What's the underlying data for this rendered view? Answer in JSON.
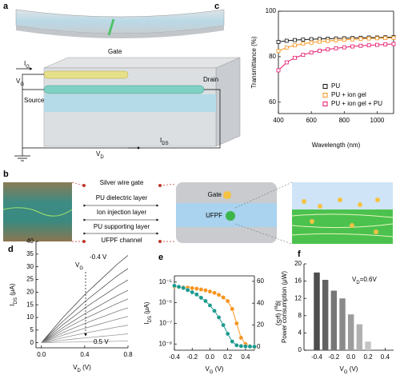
{
  "figure": {
    "panel_labels": [
      "a",
      "b",
      "c",
      "d",
      "e",
      "f"
    ],
    "a": {
      "gate": "Gate",
      "ig": {
        "main": "I",
        "sub": "G"
      },
      "vg": {
        "main": "V",
        "sub": "G"
      },
      "source": "Source",
      "drain": "Drain",
      "ids": {
        "main": "I",
        "sub": "DS"
      },
      "vd": {
        "main": "V",
        "sub": "D"
      }
    },
    "b": {
      "layers": [
        "Silver wire gate",
        "PU dielectric layer",
        "Ion injection layer",
        "PU supporting layer",
        "UFPF channel"
      ],
      "gate": "Gate",
      "ufpf": "UFPF"
    }
  },
  "chart_data": [
    {
      "type": "scatter",
      "xlabel": "Wavelength (nm)",
      "ylabel": "Transmittance (%)",
      "x": [
        400,
        450,
        500,
        550,
        600,
        650,
        700,
        750,
        800,
        850,
        900,
        950,
        1000,
        1050,
        1100
      ],
      "series": [
        {
          "name": "PU",
          "color": "#111111",
          "values": [
            86.5,
            87,
            87.3,
            87.5,
            87.7,
            87.8,
            87.9,
            88,
            88.1,
            88.2,
            88.3,
            88.4,
            88.4,
            88.5,
            88.6
          ]
        },
        {
          "name": "PU + ion gel",
          "color": "#f7941d",
          "values": [
            82.5,
            84,
            85,
            85.7,
            86.2,
            86.6,
            86.9,
            87.2,
            87.4,
            87.6,
            87.8,
            88,
            88.1,
            88.2,
            88.3
          ]
        },
        {
          "name": "PU + ion gel + PU",
          "color": "#e6156b",
          "values": [
            74,
            77.5,
            79.5,
            80.8,
            81.8,
            82.6,
            83.2,
            83.7,
            84.1,
            84.5,
            84.8,
            85,
            85.2,
            85.4,
            85.6
          ]
        }
      ],
      "xlim": [
        400,
        1100
      ],
      "xticks": [
        400,
        600,
        800,
        1000
      ],
      "ylim": [
        55,
        100
      ],
      "yticks": [
        60,
        80,
        100
      ],
      "legend": "lower right"
    },
    {
      "type": "line",
      "xlabel": {
        "main": "V",
        "sub": "D",
        "unit": " (V)"
      },
      "ylabel": {
        "main": "I",
        "sub": "DS",
        "unit": " (μA)"
      },
      "x": [
        0,
        0.1,
        0.2,
        0.3,
        0.4,
        0.5,
        0.6,
        0.7,
        0.8
      ],
      "series": [
        {
          "color": "#444444",
          "values": [
            0,
            5,
            10,
            14.5,
            19,
            23,
            27,
            31,
            34.5
          ]
        },
        {
          "color": "#555555",
          "values": [
            0,
            4.3,
            8.5,
            12.3,
            16.2,
            19.6,
            23,
            26.4,
            29.3
          ]
        },
        {
          "color": "#606060",
          "values": [
            0,
            3.6,
            7.2,
            10.4,
            13.7,
            16.6,
            19.4,
            22.3,
            24.8
          ]
        },
        {
          "color": "#6a6a6a",
          "values": [
            0,
            3,
            6,
            8.7,
            11.4,
            13.8,
            16.2,
            18.6,
            20.7
          ]
        },
        {
          "color": "#747474",
          "values": [
            0,
            2.5,
            5,
            7.3,
            9.5,
            11.5,
            13.5,
            15.5,
            17.3
          ]
        },
        {
          "color": "#7e7e7e",
          "values": [
            0,
            2,
            4,
            5.8,
            7.6,
            9.2,
            10.8,
            12.4,
            13.8
          ]
        },
        {
          "color": "#888888",
          "values": [
            0,
            1.5,
            3,
            4.4,
            5.7,
            6.9,
            8.1,
            9.3,
            10.4
          ]
        },
        {
          "color": "#929292",
          "values": [
            0,
            1,
            2,
            2.9,
            3.8,
            4.6,
            5.4,
            6.2,
            6.9
          ]
        },
        {
          "color": "#9c9c9c",
          "values": [
            0,
            0.5,
            1,
            1.5,
            1.9,
            2.3,
            2.7,
            3.1,
            3.5
          ]
        },
        {
          "color": "#a6a6a6",
          "values": [
            0,
            0.1,
            0.2,
            0.3,
            0.4,
            0.5,
            0.5,
            0.6,
            0.7
          ]
        }
      ],
      "annotations": {
        "top": "-0.4 V",
        "bottom": "0.5 V",
        "arrow": {
          "main": "V",
          "sub": "G"
        }
      },
      "xlim": [
        -0.05,
        0.8
      ],
      "xticks": [
        {
          "value": 0,
          "label": "0.0"
        },
        0.4,
        0.8
      ],
      "ylim": [
        -2,
        40
      ],
      "yticks": [
        0,
        5,
        10,
        15,
        20,
        25,
        30,
        35,
        40
      ]
    },
    {
      "type": "line",
      "xlabel": {
        "main": "V",
        "sub": "G",
        "unit": " (V)"
      },
      "ylabel": {
        "main": "I",
        "sub": "DS",
        "unit": " (μA)"
      },
      "y2label": {
        "main": "|g",
        "sub": "m",
        "unit": "| (μS)"
      },
      "x": [
        -0.4,
        -0.35,
        -0.3,
        -0.25,
        -0.2,
        -0.15,
        -0.1,
        -0.05,
        0,
        0.05,
        0.1,
        0.15,
        0.2,
        0.25,
        0.3,
        0.35,
        0.4,
        0.45,
        0.5
      ],
      "series": [
        {
          "color": "#f7941d",
          "values": [
            6e-06,
            5.8e-06,
            5.6e-06,
            5.4e-06,
            5.1e-06,
            4.8e-06,
            4.4e-06,
            4e-06,
            3.5e-06,
            3e-06,
            2.4e-06,
            1.8e-06,
            1.2e-06,
            5e-07,
            1e-07,
            2e-08,
            1e-08,
            8e-09,
            7e-09
          ]
        },
        {
          "color": "#1a9a8f",
          "axis": "y2",
          "values": [
            56,
            55,
            54,
            52,
            50,
            48,
            45,
            42,
            38,
            33,
            27,
            20,
            12,
            5,
            1.5,
            0.8,
            0.5,
            0.4,
            0.3
          ]
        }
      ],
      "xlim": [
        -0.4,
        0.5
      ],
      "xticks": [
        -0.4,
        -0.2,
        {
          "value": 0,
          "label": "0.0"
        },
        0.2,
        0.4
      ],
      "ylog": true,
      "ylim": [
        5e-09,
        2e-05
      ],
      "yticks": [
        {
          "value": 1e-08,
          "label": "10⁻⁸"
        },
        {
          "value": 1e-07,
          "label": "10⁻⁷"
        },
        {
          "value": 1e-06,
          "label": "10⁻⁶"
        },
        {
          "value": 1e-05,
          "label": "10⁻⁵"
        }
      ],
      "y2lim": [
        -3,
        65
      ],
      "y2ticks": [
        0,
        20,
        40,
        60
      ]
    },
    {
      "type": "bar",
      "xlabel": {
        "main": "V",
        "sub": "G",
        "unit": " (V)"
      },
      "ylabel": "Power consumption (μW)",
      "x": [
        -0.4,
        -0.3,
        -0.2,
        -0.1,
        0,
        0.1,
        0.2
      ],
      "values": [
        18,
        16.3,
        13.8,
        12,
        8.3,
        6,
        2
      ],
      "colors": [
        "#4d4d4d",
        "#626262",
        "#777777",
        "#8a8a8a",
        "#9c9c9c",
        "#b0b0b0",
        "#c4c4c4"
      ],
      "annotation": {
        "main": "V",
        "sub": "D",
        "unit": "=0.6V"
      },
      "xlim": [
        -0.55,
        0.5
      ],
      "xticks": [
        -0.4,
        -0.2,
        {
          "value": 0,
          "label": "0.0"
        },
        0.2,
        0.4
      ],
      "ylim": [
        0,
        20
      ],
      "yticks": [
        0,
        4,
        8,
        12,
        16,
        20
      ]
    }
  ]
}
